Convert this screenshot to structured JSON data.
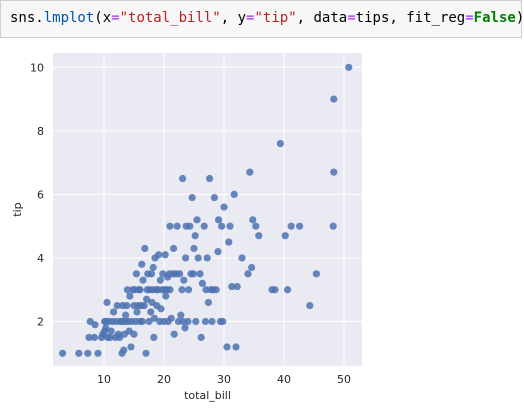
{
  "code_cell": {
    "tokens": [
      {
        "t": "sns.",
        "c": ""
      },
      {
        "t": "lmplot",
        "c": "tok-func"
      },
      {
        "t": "(x",
        "c": ""
      },
      {
        "t": "=",
        "c": "tok-eq"
      },
      {
        "t": "\"total_bill\"",
        "c": "tok-str"
      },
      {
        "t": ", y",
        "c": ""
      },
      {
        "t": "=",
        "c": "tok-eq"
      },
      {
        "t": "\"tip\"",
        "c": "tok-str"
      },
      {
        "t": ", data",
        "c": ""
      },
      {
        "t": "=",
        "c": "tok-eq"
      },
      {
        "t": "tips, fit_reg",
        "c": ""
      },
      {
        "t": "=",
        "c": "tok-eq"
      },
      {
        "t": "False",
        "c": "tok-bool"
      },
      {
        "t": ");",
        "c": ""
      }
    ]
  },
  "chart_data": {
    "type": "scatter",
    "xlabel": "total_bill",
    "ylabel": "tip",
    "xlim": [
      1.5,
      53.0
    ],
    "ylim": [
      0.6,
      10.45
    ],
    "xticks": [
      10,
      20,
      30,
      40,
      50
    ],
    "yticks": [
      2,
      4,
      6,
      8,
      10
    ],
    "grid": true,
    "background": "#eaeaf2",
    "point_color": "#4c72b0",
    "points": [
      [
        3.1,
        1.0
      ],
      [
        5.8,
        1.0
      ],
      [
        7.3,
        1.0
      ],
      [
        7.5,
        1.5
      ],
      [
        8.4,
        1.5
      ],
      [
        7.7,
        2.0
      ],
      [
        8.5,
        1.9
      ],
      [
        9.0,
        1.0
      ],
      [
        9.6,
        1.5
      ],
      [
        9.8,
        1.6
      ],
      [
        10.1,
        1.7
      ],
      [
        10.3,
        1.8
      ],
      [
        10.1,
        2.0
      ],
      [
        10.3,
        2.0
      ],
      [
        10.5,
        2.6
      ],
      [
        10.6,
        1.5
      ],
      [
        10.8,
        2.0
      ],
      [
        11.0,
        1.5
      ],
      [
        11.2,
        1.7
      ],
      [
        11.4,
        2.0
      ],
      [
        11.6,
        2.3
      ],
      [
        11.9,
        1.5
      ],
      [
        12.0,
        2.0
      ],
      [
        12.2,
        2.5
      ],
      [
        12.4,
        1.6
      ],
      [
        12.6,
        1.5
      ],
      [
        12.7,
        2.0
      ],
      [
        13.0,
        1.0
      ],
      [
        13.0,
        2.0
      ],
      [
        13.1,
        2.5
      ],
      [
        13.3,
        1.1
      ],
      [
        13.4,
        1.6
      ],
      [
        13.5,
        2.0
      ],
      [
        13.6,
        2.2
      ],
      [
        13.8,
        2.5
      ],
      [
        13.9,
        3.0
      ],
      [
        14.0,
        2.0
      ],
      [
        14.2,
        1.7
      ],
      [
        14.3,
        2.8
      ],
      [
        14.5,
        1.2
      ],
      [
        14.6,
        2.0
      ],
      [
        14.8,
        3.0
      ],
      [
        15.0,
        1.6
      ],
      [
        15.0,
        2.5
      ],
      [
        15.1,
        3.0
      ],
      [
        15.3,
        2.0
      ],
      [
        15.4,
        3.5
      ],
      [
        15.5,
        2.3
      ],
      [
        15.7,
        2.5
      ],
      [
        15.8,
        3.0
      ],
      [
        16.0,
        2.0
      ],
      [
        16.0,
        3.0
      ],
      [
        16.2,
        2.5
      ],
      [
        16.3,
        3.8
      ],
      [
        16.4,
        2.0
      ],
      [
        16.5,
        3.3
      ],
      [
        16.7,
        2.5
      ],
      [
        16.8,
        4.3
      ],
      [
        17.0,
        1.0
      ],
      [
        17.1,
        2.7
      ],
      [
        17.2,
        3.0
      ],
      [
        17.3,
        3.5
      ],
      [
        17.5,
        2.0
      ],
      [
        17.6,
        3.0
      ],
      [
        17.8,
        2.3
      ],
      [
        17.9,
        3.5
      ],
      [
        18.0,
        2.6
      ],
      [
        18.1,
        3.0
      ],
      [
        18.2,
        3.7
      ],
      [
        18.3,
        1.5
      ],
      [
        18.4,
        2.1
      ],
      [
        18.5,
        4.0
      ],
      [
        18.7,
        3.0
      ],
      [
        18.8,
        2.5
      ],
      [
        19.0,
        3.0
      ],
      [
        19.1,
        4.1
      ],
      [
        19.3,
        2.0
      ],
      [
        19.4,
        3.3
      ],
      [
        19.5,
        2.4
      ],
      [
        19.7,
        3.0
      ],
      [
        19.8,
        3.5
      ],
      [
        20.0,
        2.0
      ],
      [
        20.1,
        3.0
      ],
      [
        20.2,
        4.1
      ],
      [
        20.3,
        2.8
      ],
      [
        20.5,
        3.0
      ],
      [
        20.6,
        3.4
      ],
      [
        20.7,
        2.0
      ],
      [
        20.9,
        3.5
      ],
      [
        21.0,
        5.0
      ],
      [
        21.0,
        3.0
      ],
      [
        21.2,
        2.1
      ],
      [
        21.5,
        3.5
      ],
      [
        21.6,
        4.3
      ],
      [
        21.7,
        1.6
      ],
      [
        22.0,
        3.5
      ],
      [
        22.2,
        5.0
      ],
      [
        22.4,
        2.0
      ],
      [
        22.6,
        3.5
      ],
      [
        22.8,
        2.2
      ],
      [
        23.0,
        3.0
      ],
      [
        23.1,
        6.5
      ],
      [
        23.2,
        2.0
      ],
      [
        23.3,
        3.3
      ],
      [
        23.5,
        1.8
      ],
      [
        23.6,
        4.0
      ],
      [
        23.7,
        5.0
      ],
      [
        24.0,
        2.0
      ],
      [
        24.1,
        3.0
      ],
      [
        24.3,
        5.0
      ],
      [
        24.5,
        3.5
      ],
      [
        24.7,
        5.9
      ],
      [
        24.9,
        3.5
      ],
      [
        25.0,
        4.3
      ],
      [
        25.2,
        4.7
      ],
      [
        25.3,
        2.0
      ],
      [
        25.5,
        5.2
      ],
      [
        25.7,
        4.0
      ],
      [
        26.0,
        3.5
      ],
      [
        26.2,
        1.5
      ],
      [
        26.4,
        3.2
      ],
      [
        26.7,
        5.0
      ],
      [
        26.9,
        2.0
      ],
      [
        27.0,
        3.0
      ],
      [
        27.2,
        4.0
      ],
      [
        27.4,
        2.6
      ],
      [
        27.6,
        6.5
      ],
      [
        27.8,
        3.0
      ],
      [
        28.0,
        2.0
      ],
      [
        28.2,
        3.0
      ],
      [
        28.4,
        5.9
      ],
      [
        28.7,
        3.0
      ],
      [
        29.0,
        4.2
      ],
      [
        29.1,
        5.2
      ],
      [
        29.4,
        2.0
      ],
      [
        29.6,
        5.0
      ],
      [
        29.8,
        2.0
      ],
      [
        30.0,
        5.6
      ],
      [
        30.5,
        1.2
      ],
      [
        30.8,
        4.5
      ],
      [
        31.0,
        5.0
      ],
      [
        31.3,
        3.1
      ],
      [
        31.7,
        6.0
      ],
      [
        32.0,
        1.2
      ],
      [
        32.2,
        3.1
      ],
      [
        33.0,
        4.0
      ],
      [
        34.0,
        3.5
      ],
      [
        34.3,
        6.7
      ],
      [
        34.6,
        3.7
      ],
      [
        34.8,
        5.2
      ],
      [
        35.3,
        5.0
      ],
      [
        35.8,
        4.7
      ],
      [
        38.0,
        3.0
      ],
      [
        38.5,
        3.0
      ],
      [
        39.4,
        7.6
      ],
      [
        40.2,
        4.7
      ],
      [
        40.6,
        3.0
      ],
      [
        41.2,
        5.0
      ],
      [
        42.6,
        5.0
      ],
      [
        44.3,
        2.5
      ],
      [
        45.4,
        3.5
      ],
      [
        48.2,
        5.0
      ],
      [
        48.3,
        6.7
      ],
      [
        48.3,
        9.0
      ],
      [
        50.8,
        10.0
      ]
    ]
  }
}
